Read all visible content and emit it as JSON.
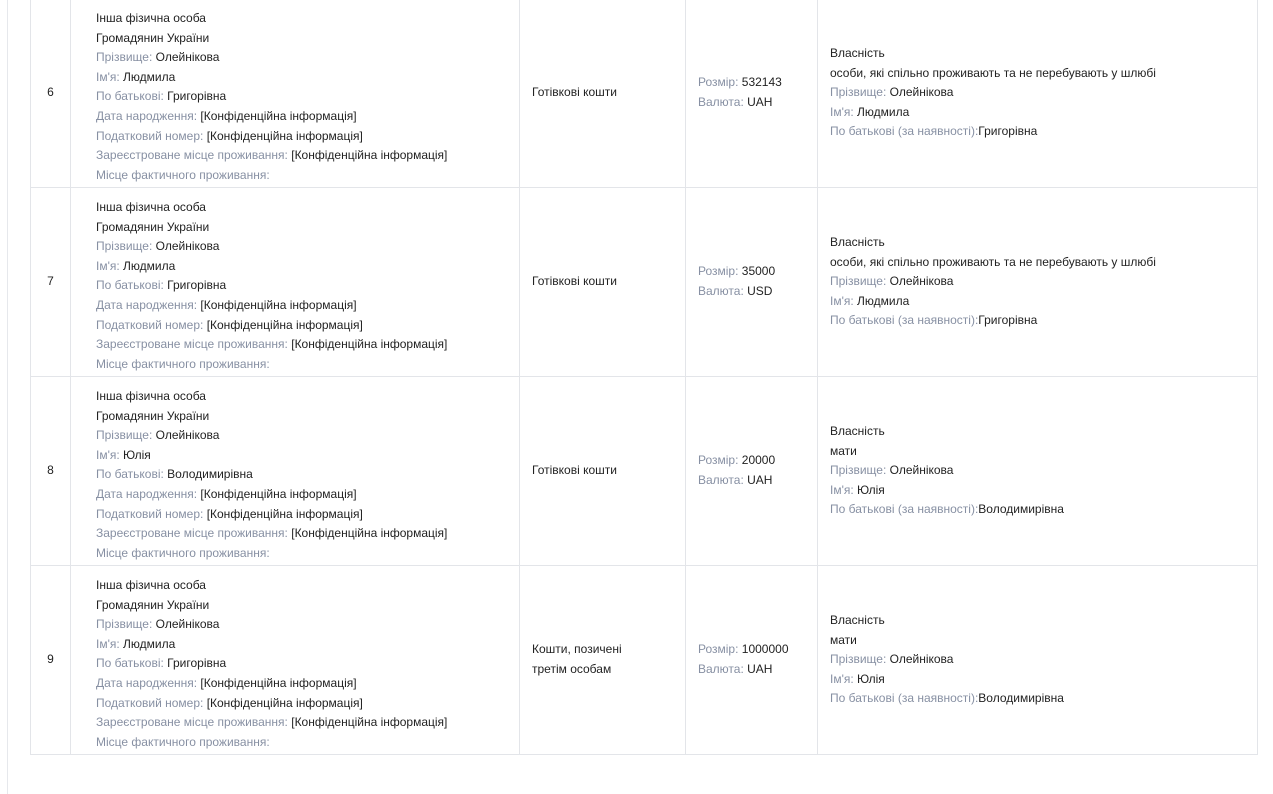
{
  "labels": {
    "surname": "Прізвище: ",
    "name": "Ім'я: ",
    "patronymic": "По батькові: ",
    "birth": "Дата народження: ",
    "tax": "Податковий номер: ",
    "reg": "Зареєстроване місце проживання: ",
    "actual": "Місце фактичного проживання:",
    "size": "Розмір: ",
    "currency": "Валюта: ",
    "patronymic_opt": "По батькові (за наявності):"
  },
  "rows": [
    {
      "num": "6",
      "type": "Інша фізична особа",
      "citizenship": "Громадянин України",
      "surname": "Олейнікова",
      "name": "Людмила",
      "patronymic": "Григорівна",
      "birth": "[Конфіденційна інформація]",
      "tax": "[Конфіденційна інформація]",
      "reg": "[Конфіденційна інформація]",
      "asset": "Готівкові кошти",
      "size": "532143",
      "currency": "UAH",
      "ownership": "Власність",
      "relation": "особи, які спільно проживають та не перебувають у шлюбі",
      "o_surname": "Олейнікова",
      "o_name": "Людмила",
      "o_patronymic": "Григорівна"
    },
    {
      "num": "7",
      "type": "Інша фізична особа",
      "citizenship": "Громадянин України",
      "surname": "Олейнікова",
      "name": "Людмила",
      "patronymic": "Григорівна",
      "birth": "[Конфіденційна інформація]",
      "tax": "[Конфіденційна інформація]",
      "reg": "[Конфіденційна інформація]",
      "asset": "Готівкові кошти",
      "size": "35000",
      "currency": "USD",
      "ownership": "Власність",
      "relation": "особи, які спільно проживають та не перебувають у шлюбі",
      "o_surname": "Олейнікова",
      "o_name": "Людмила",
      "o_patronymic": "Григорівна"
    },
    {
      "num": "8",
      "type": "Інша фізична особа",
      "citizenship": "Громадянин України",
      "surname": "Олейнікова",
      "name": "Юлія",
      "patronymic": "Володимирівна",
      "birth": "[Конфіденційна інформація]",
      "tax": "[Конфіденційна інформація]",
      "reg": "[Конфіденційна інформація]",
      "asset": "Готівкові кошти",
      "size": "20000",
      "currency": "UAH",
      "ownership": "Власність",
      "relation": "мати",
      "o_surname": "Олейнікова",
      "o_name": "Юлія",
      "o_patronymic": "Володимирівна"
    },
    {
      "num": "9",
      "type": "Інша фізична особа",
      "citizenship": "Громадянин України",
      "surname": "Олейнікова",
      "name": "Людмила",
      "patronymic": "Григорівна",
      "birth": "[Конфіденційна інформація]",
      "tax": "[Конфіденційна інформація]",
      "reg": "[Конфіденційна інформація]",
      "asset_line1": "Кошти, позичені",
      "asset_line2": "третім особам",
      "size": "1000000",
      "currency": "UAH",
      "ownership": "Власність",
      "relation": "мати",
      "o_surname": "Олейнікова",
      "o_name": "Юлія",
      "o_patronymic": "Володимирівна"
    }
  ]
}
